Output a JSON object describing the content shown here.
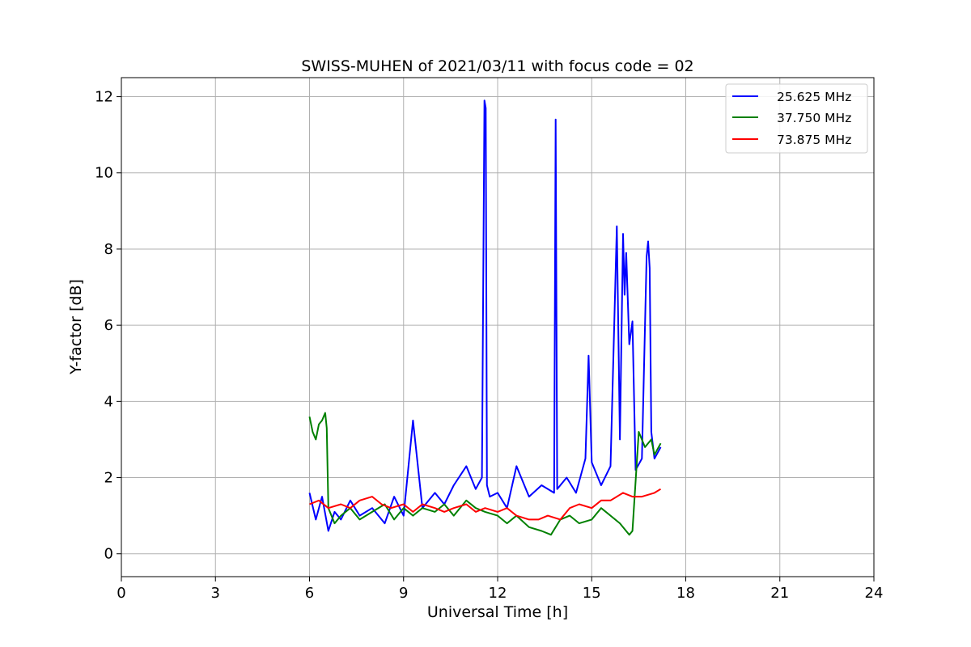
{
  "chart_data": {
    "type": "line",
    "title": "SWISS-MUHEN of 2021/03/11 with focus code = 02",
    "xlabel": "Universal Time [h]",
    "ylabel": "Y-factor [dB]",
    "xlim": [
      0,
      24
    ],
    "ylim": [
      -0.6,
      12.5
    ],
    "xticks": [
      0,
      3,
      6,
      9,
      12,
      15,
      18,
      21,
      24
    ],
    "yticks": [
      0,
      2,
      4,
      6,
      8,
      10,
      12
    ],
    "grid": true,
    "legend_position": "top-right",
    "series": [
      {
        "name": "25.625 MHz",
        "color": "#0000ff",
        "x": [
          6.0,
          6.2,
          6.4,
          6.6,
          6.8,
          7.0,
          7.3,
          7.6,
          8.0,
          8.4,
          8.7,
          9.0,
          9.3,
          9.6,
          10.0,
          10.3,
          10.6,
          11.0,
          11.3,
          11.5,
          11.58,
          11.62,
          11.66,
          11.75,
          12.0,
          12.3,
          12.6,
          13.0,
          13.4,
          13.8,
          13.85,
          13.9,
          14.2,
          14.5,
          14.8,
          14.9,
          15.0,
          15.3,
          15.6,
          15.8,
          15.9,
          16.0,
          16.05,
          16.1,
          16.2,
          16.3,
          16.4,
          16.6,
          16.75,
          16.8,
          16.85,
          16.9,
          17.0,
          17.2
        ],
        "values": [
          1.6,
          0.9,
          1.5,
          0.6,
          1.1,
          0.9,
          1.4,
          1.0,
          1.2,
          0.8,
          1.5,
          1.0,
          3.5,
          1.2,
          1.6,
          1.3,
          1.8,
          2.3,
          1.7,
          2.0,
          11.9,
          11.7,
          1.8,
          1.5,
          1.6,
          1.2,
          2.3,
          1.5,
          1.8,
          1.6,
          11.4,
          1.7,
          2.0,
          1.6,
          2.5,
          5.2,
          2.4,
          1.8,
          2.3,
          8.6,
          3.0,
          8.4,
          6.8,
          7.9,
          5.5,
          6.1,
          2.2,
          2.5,
          7.8,
          8.2,
          7.5,
          3.2,
          2.5,
          2.8
        ]
      },
      {
        "name": "37.750 MHz",
        "color": "#008000",
        "x": [
          6.0,
          6.1,
          6.2,
          6.3,
          6.4,
          6.5,
          6.55,
          6.6,
          6.8,
          7.0,
          7.3,
          7.6,
          8.0,
          8.4,
          8.7,
          9.0,
          9.3,
          9.6,
          10.0,
          10.3,
          10.6,
          11.0,
          11.3,
          11.6,
          12.0,
          12.3,
          12.6,
          13.0,
          13.4,
          13.7,
          14.0,
          14.3,
          14.6,
          15.0,
          15.3,
          15.6,
          15.9,
          16.2,
          16.3,
          16.5,
          16.7,
          16.9,
          17.0,
          17.2
        ],
        "values": [
          3.6,
          3.2,
          3.0,
          3.4,
          3.5,
          3.7,
          3.3,
          1.2,
          0.8,
          1.0,
          1.2,
          0.9,
          1.1,
          1.3,
          0.9,
          1.2,
          1.0,
          1.2,
          1.1,
          1.3,
          1.0,
          1.4,
          1.2,
          1.1,
          1.0,
          0.8,
          1.0,
          0.7,
          0.6,
          0.5,
          0.9,
          1.0,
          0.8,
          0.9,
          1.2,
          1.0,
          0.8,
          0.5,
          0.6,
          3.2,
          2.8,
          3.0,
          2.6,
          2.9
        ]
      },
      {
        "name": "73.875 MHz",
        "color": "#ff0000",
        "x": [
          6.0,
          6.3,
          6.6,
          7.0,
          7.3,
          7.6,
          8.0,
          8.3,
          8.6,
          9.0,
          9.3,
          9.6,
          10.0,
          10.3,
          10.6,
          11.0,
          11.3,
          11.6,
          12.0,
          12.3,
          12.6,
          13.0,
          13.3,
          13.6,
          14.0,
          14.3,
          14.6,
          15.0,
          15.3,
          15.6,
          16.0,
          16.3,
          16.6,
          17.0,
          17.2
        ],
        "values": [
          1.3,
          1.4,
          1.2,
          1.3,
          1.2,
          1.4,
          1.5,
          1.3,
          1.2,
          1.3,
          1.1,
          1.3,
          1.2,
          1.1,
          1.2,
          1.3,
          1.1,
          1.2,
          1.1,
          1.2,
          1.0,
          0.9,
          0.9,
          1.0,
          0.9,
          1.2,
          1.3,
          1.2,
          1.4,
          1.4,
          1.6,
          1.5,
          1.5,
          1.6,
          1.7
        ]
      }
    ]
  }
}
